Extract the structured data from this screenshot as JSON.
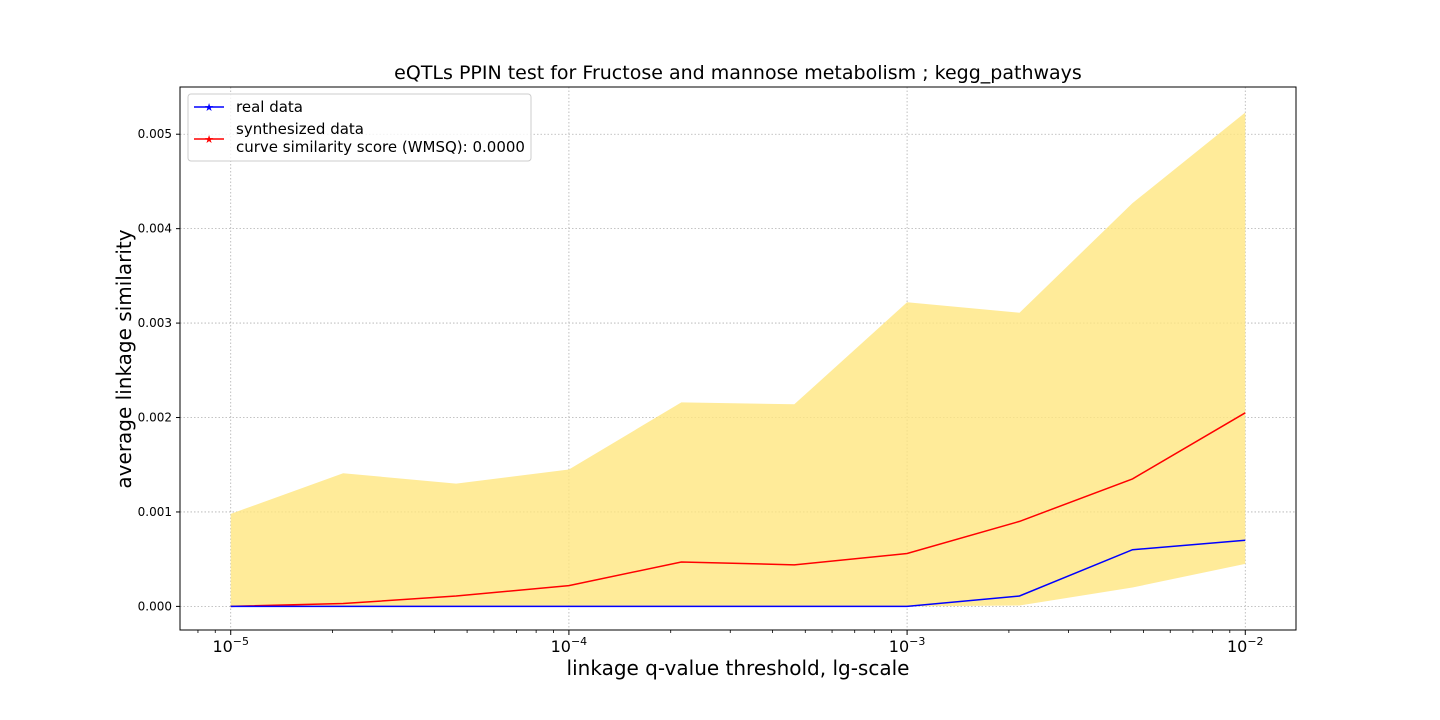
{
  "chart_data": {
    "type": "line",
    "title": "eQTLs PPIN test for Fructose and mannose metabolism ; kegg_pathways",
    "xlabel": "linkage q-value threshold, lg-scale",
    "ylabel": "average linkage similarity",
    "xscale": "log",
    "xlim": [
      7.5e-06,
      1.35e-05
    ],
    "x_log10_range": [
      -5.15,
      -1.85
    ],
    "ylim": [
      -0.00025,
      0.0055
    ],
    "grid": true,
    "legend_position": "top-left",
    "x": [
      1e-05,
      2.15e-05,
      4.64e-05,
      0.0001,
      0.000215,
      0.000464,
      0.001,
      0.00215,
      0.00464,
      0.01
    ],
    "xticks": [
      {
        "base": "10",
        "exp": "−5",
        "value": 1e-05
      },
      {
        "base": "10",
        "exp": "−4",
        "value": 0.0001
      },
      {
        "base": "10",
        "exp": "−3",
        "value": 0.001
      },
      {
        "base": "10",
        "exp": "−2",
        "value": 0.01
      }
    ],
    "yticks": [
      "0.000",
      "0.001",
      "0.002",
      "0.003",
      "0.004",
      "0.005"
    ],
    "ytick_values": [
      0,
      0.001,
      0.002,
      0.003,
      0.004,
      0.005
    ],
    "series": [
      {
        "name": "real data",
        "color": "#0000ff",
        "values": [
          0,
          0,
          0,
          0,
          0,
          0,
          0,
          0.00011,
          0.0006,
          0.0007
        ]
      },
      {
        "name": "synthesized data",
        "color": "#ff0000",
        "values": [
          0,
          3e-05,
          0.00011,
          0.00022,
          0.00047,
          0.00044,
          0.00056,
          0.0009,
          0.00135,
          0.00205
        ]
      }
    ],
    "band": {
      "color": "#ffe680",
      "lower": [
        0,
        0,
        0,
        0,
        0,
        0,
        0,
        1e-05,
        0.0002,
        0.00045
      ],
      "upper": [
        0.00098,
        0.00141,
        0.0013,
        0.00145,
        0.00216,
        0.00214,
        0.00322,
        0.00311,
        0.00427,
        0.00523
      ]
    },
    "legend": {
      "real_label": "real data",
      "synth_label_line1": "synthesized data",
      "synth_label_line2": "curve similarity score (WMSQ): 0.0000"
    }
  }
}
